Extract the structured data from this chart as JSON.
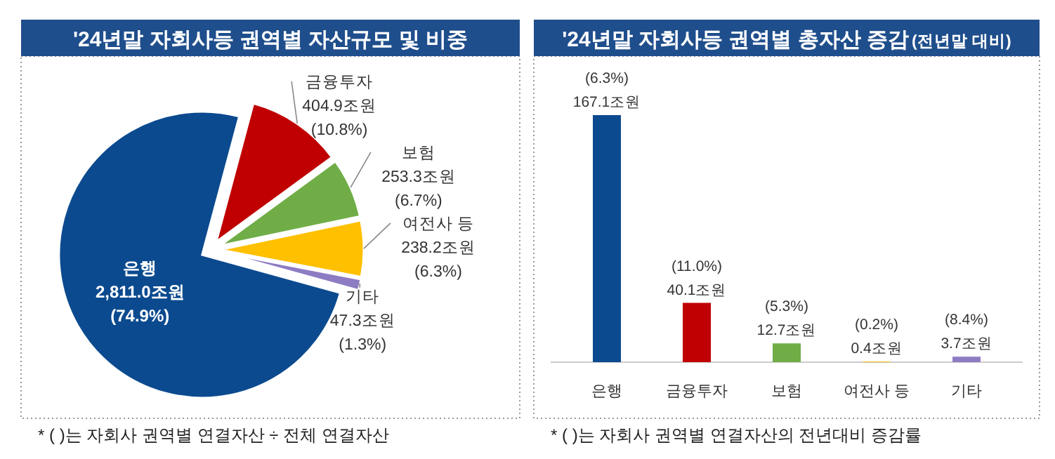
{
  "chart_data": [
    {
      "type": "pie",
      "title": "'24년말 자회사등 권역별 자산규모 및 비중",
      "categories": [
        "은행",
        "금융투자",
        "보험",
        "여전사 등",
        "기타"
      ],
      "values": [
        2811.0,
        404.9,
        253.3,
        238.2,
        47.3
      ],
      "colors": [
        "#0b4a8f",
        "#c00000",
        "#70ad47",
        "#ffc000",
        "#8e7cc3"
      ],
      "value_labels": [
        "2,811.0조원",
        "404.9조원",
        "253.3조원",
        "238.2조원",
        "47.3조원"
      ],
      "annotations": [
        {
          "text": "(74.9%)",
          "x": "은행"
        },
        {
          "text": "(10.8%)",
          "x": "금융투자"
        },
        {
          "text": "(6.7%)",
          "x": "보험"
        },
        {
          "text": "(6.3%)",
          "x": "여전사 등"
        },
        {
          "text": "(1.3%)",
          "x": "기타"
        },
        "* (   )는 자회사 권역별 연결자산 ÷ 전체 연결자산"
      ]
    },
    {
      "type": "bar",
      "title": "'24년말 자회사등 권역별 총자산 증감",
      "subtitle": "(전년말 대비)",
      "categories": [
        "은행",
        "금융투자",
        "보험",
        "여전사 등",
        "기타"
      ],
      "values": [
        167.1,
        40.1,
        12.7,
        0.4,
        3.7
      ],
      "colors": [
        "#0b4a8f",
        "#c00000",
        "#70ad47",
        "#ffc000",
        "#8e7cc3"
      ],
      "value_labels": [
        "167.1조원",
        "40.1조원",
        "12.7조원",
        "0.4조원",
        "3.7조원"
      ],
      "annotations": [
        {
          "text": "(6.3%)",
          "x": "은행",
          "y": 167.1
        },
        {
          "text": "(11.0%)",
          "x": "금융투자",
          "y": 40.1
        },
        {
          "text": "(5.3%)",
          "x": "보험",
          "y": 12.7
        },
        {
          "text": "(0.2%)",
          "x": "여전사 등",
          "y": 0.4
        },
        {
          "text": "(8.4%)",
          "x": "기타",
          "y": 3.7
        },
        "* (   )는 자회사 권역별 연결자산의 전년대비 증감률"
      ]
    }
  ]
}
